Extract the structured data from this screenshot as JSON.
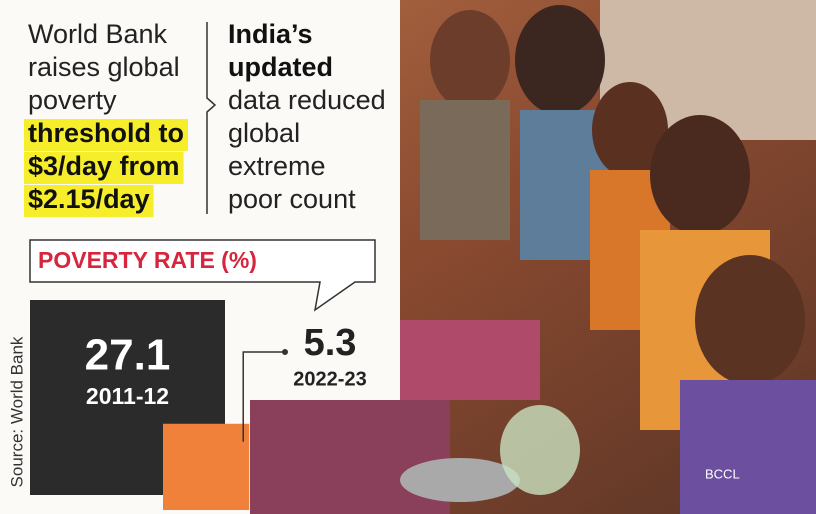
{
  "chart_data": {
    "type": "square-area",
    "headline": {
      "plain": [
        "World Bank",
        "raises global",
        "poverty"
      ],
      "highlighted": [
        "threshold to",
        "$3/day from",
        "$2.15/day"
      ]
    },
    "subhead": {
      "bold": [
        "India’s",
        "updated"
      ],
      "regular": [
        "data reduced",
        "global",
        "extreme",
        "poor count"
      ]
    },
    "title": "POVERTY RATE (%)",
    "categories": [
      "2011-12",
      "2022-23"
    ],
    "values": [
      27.1,
      5.3
    ],
    "colors": [
      "#2b2b2b",
      "#f0813a"
    ],
    "source": "Source: World Bank",
    "credit": "BCCL"
  }
}
